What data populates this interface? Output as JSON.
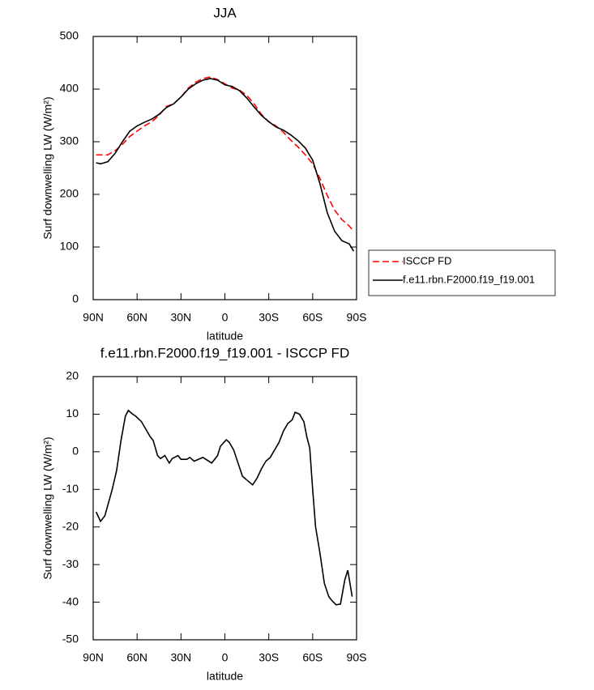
{
  "chart_data": [
    {
      "type": "line",
      "title": "JJA",
      "xlabel": "latitude",
      "ylabel": "Surf downwelling LW (W/m²)",
      "xlim": [
        90,
        -90
      ],
      "xticks": [
        {
          "value": 90,
          "label": "90N"
        },
        {
          "value": 60,
          "label": "60N"
        },
        {
          "value": 30,
          "label": "30N"
        },
        0,
        {
          "value": -30,
          "label": "30S"
        },
        {
          "value": -60,
          "label": "60S"
        },
        {
          "value": -90,
          "label": "90S"
        }
      ],
      "ylim": [
        0,
        500
      ],
      "yticks": [
        0,
        100,
        200,
        300,
        400,
        500
      ],
      "legend": "right",
      "x": [
        88,
        85,
        80,
        75,
        70,
        65,
        60,
        55,
        50,
        45,
        40,
        35,
        30,
        25,
        20,
        15,
        10,
        5,
        0,
        -5,
        -10,
        -15,
        -20,
        -25,
        -30,
        -35,
        -40,
        -45,
        -50,
        -55,
        -60,
        -65,
        -70,
        -75,
        -80,
        -85,
        -88
      ],
      "series": [
        {
          "name": "ISCCP FD",
          "color": "#ff0000",
          "dashed": true,
          "values": [
            275,
            275,
            275,
            283,
            295,
            310,
            320,
            330,
            338,
            350,
            367,
            372,
            385,
            402,
            413,
            420,
            423,
            418,
            410,
            402,
            398,
            388,
            372,
            352,
            338,
            330,
            318,
            303,
            290,
            275,
            258,
            230,
            198,
            170,
            152,
            140,
            130
          ]
        },
        {
          "name": "f.e11.rbn.F2000.f19_f19.001",
          "color": "#000000",
          "dashed": false,
          "values": [
            260,
            258,
            262,
            278,
            300,
            320,
            330,
            337,
            343,
            352,
            365,
            372,
            385,
            400,
            410,
            417,
            420,
            417,
            408,
            405,
            397,
            383,
            366,
            350,
            338,
            328,
            322,
            313,
            302,
            288,
            265,
            220,
            165,
            130,
            112,
            106,
            92
          ]
        }
      ]
    },
    {
      "type": "line",
      "title": "f.e11.rbn.F2000.f19_f19.001 - ISCCP FD",
      "xlabel": "latitude",
      "ylabel": "Surf downwelling LW (W/m²)",
      "xlim": [
        90,
        -90
      ],
      "xticks": [
        {
          "value": 90,
          "label": "90N"
        },
        {
          "value": 60,
          "label": "60N"
        },
        {
          "value": 30,
          "label": "30N"
        },
        0,
        {
          "value": -30,
          "label": "30S"
        },
        {
          "value": -60,
          "label": "60S"
        },
        {
          "value": -90,
          "label": "90S"
        }
      ],
      "ylim": [
        -50,
        20
      ],
      "yticks": [
        -50,
        -40,
        -30,
        -20,
        -10,
        0,
        10,
        20
      ],
      "x": [
        88,
        85,
        82,
        77,
        74,
        71,
        68,
        66,
        63,
        61,
        57,
        54,
        51,
        49,
        46,
        44,
        41,
        38,
        36,
        32,
        30,
        26,
        24,
        21,
        18,
        15,
        11,
        9,
        5,
        3,
        -1,
        -3,
        -6,
        -9,
        -12,
        -15,
        -19,
        -22,
        -25,
        -28,
        -31,
        -34,
        -37,
        -40,
        -43,
        -46,
        -48,
        -51,
        -54,
        -56,
        -58,
        -60,
        -62,
        -65,
        -68,
        -71,
        -73,
        -76,
        -79,
        -82,
        -84,
        -87
      ],
      "series": [
        {
          "color": "#000000",
          "values": [
            -16,
            -18.5,
            -17,
            -10,
            -5,
            3,
            9.5,
            11,
            10,
            9.5,
            8,
            6,
            4,
            3,
            -1,
            -1.8,
            -1,
            -3,
            -1.8,
            -1,
            -2,
            -2,
            -1.5,
            -2.5,
            -2,
            -1.5,
            -2.5,
            -3,
            -1,
            1.5,
            3.2,
            2.5,
            0.5,
            -3,
            -6.5,
            -7.5,
            -8.8,
            -7,
            -4.5,
            -2.5,
            -1.5,
            0.5,
            2.5,
            5.5,
            7.5,
            8.5,
            10.5,
            10,
            8,
            4,
            1,
            -10,
            -20,
            -27,
            -35,
            -38.5,
            -39.5,
            -40.7,
            -40.5,
            -34,
            -31.5,
            -38.5
          ]
        }
      ]
    }
  ]
}
